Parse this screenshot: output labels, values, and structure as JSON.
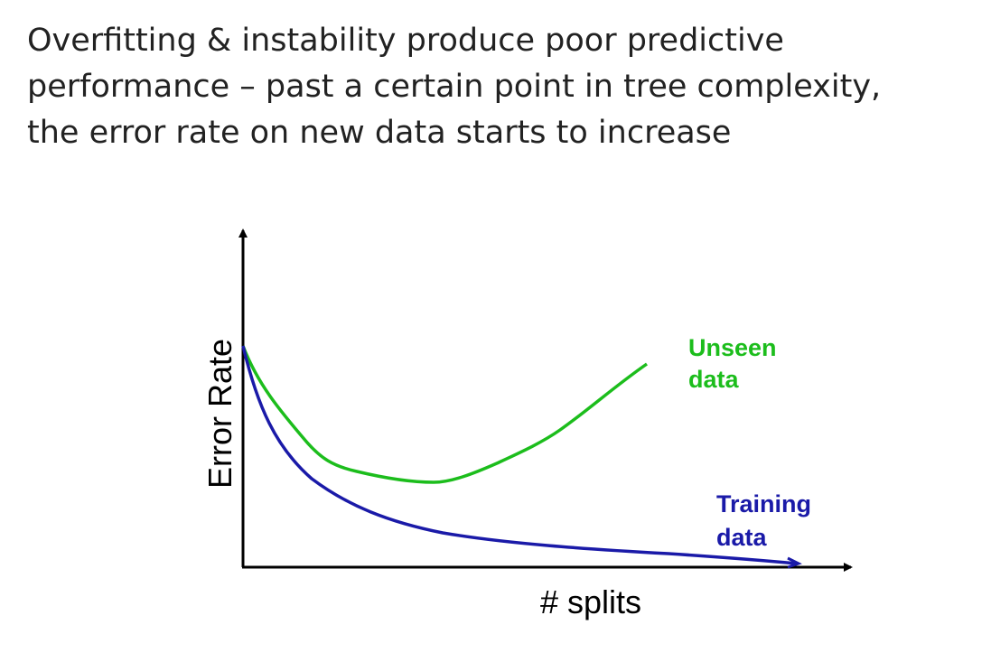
{
  "title_lines": [
    "Overfitting & instability produce poor predictive",
    "performance – past a certain point in tree complexity,",
    "the error rate on new data starts to increase"
  ],
  "diagram": {
    "x_axis_label": "# splits",
    "y_axis_label": "Error Rate",
    "curves": {
      "unseen": {
        "label_line1": "Unseen",
        "label_line2": "data",
        "color": "#1cbd1c"
      },
      "training": {
        "label_line1": "Training",
        "label_line2": "data",
        "color": "#1a1aa8"
      }
    },
    "axis_color": "#000000"
  }
}
